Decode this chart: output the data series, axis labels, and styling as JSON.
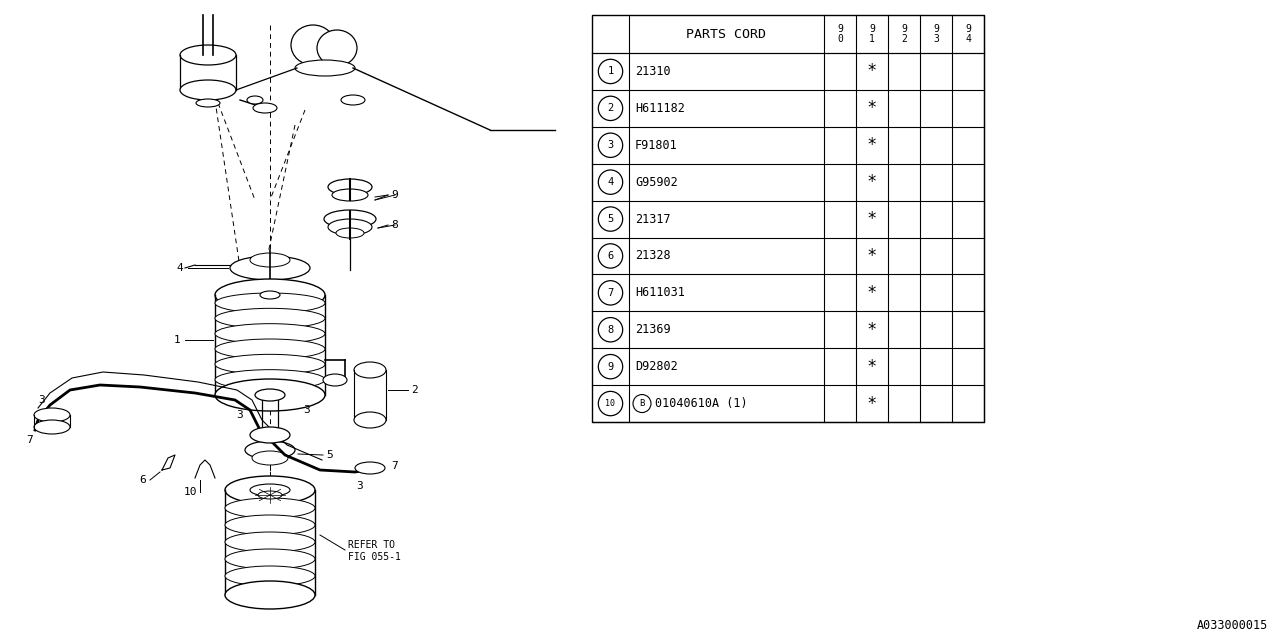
{
  "figure_code": "A033000015",
  "table_header": "PARTS CORD",
  "col_headers": [
    "9\n0",
    "9\n1",
    "9\n2",
    "9\n3",
    "9\n4"
  ],
  "rows": [
    {
      "num": "1",
      "part": "21310",
      "star_col": 1
    },
    {
      "num": "2",
      "part": "H611182",
      "star_col": 1
    },
    {
      "num": "3",
      "part": "F91801",
      "star_col": 1
    },
    {
      "num": "4",
      "part": "G95902",
      "star_col": 1
    },
    {
      "num": "5",
      "part": "21317",
      "star_col": 1
    },
    {
      "num": "6",
      "part": "21328",
      "star_col": 1
    },
    {
      "num": "7",
      "part": "H611031",
      "star_col": 1
    },
    {
      "num": "8",
      "part": "21369",
      "star_col": 1
    },
    {
      "num": "9",
      "part": "D92802",
      "star_col": 1
    },
    {
      "num": "10",
      "part": "B|01040610A (1)",
      "star_col": 1
    }
  ],
  "bg_color": "#ffffff",
  "line_color": "#000000",
  "text_color": "#000000"
}
